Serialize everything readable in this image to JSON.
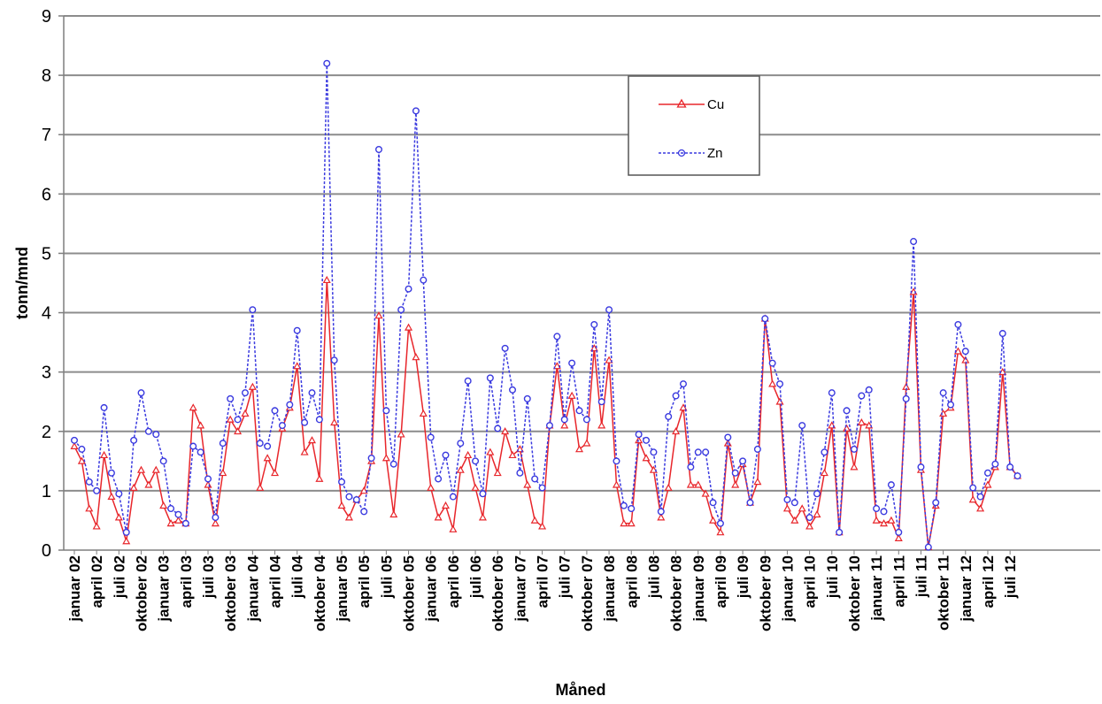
{
  "chart_data": {
    "type": "line",
    "xlabel": "Måned",
    "ylabel": "tonn/mnd",
    "ylim": [
      0,
      9
    ],
    "y_ticks": [
      "0",
      "1",
      "2",
      "3",
      "4",
      "5",
      "6",
      "7",
      "8",
      "9"
    ],
    "grid": "horizontal",
    "legend_position": "top-right",
    "x_tick_labels": [
      "januar 02",
      "april 02",
      "juli 02",
      "oktober 02",
      "januar 03",
      "april 03",
      "juli 03",
      "oktober 03",
      "januar 04",
      "april 04",
      "juli 04",
      "oktober 04",
      "januar 05",
      "april 05",
      "juli 05",
      "oktober 05",
      "januar 06",
      "april 06",
      "juli 06",
      "oktober 06",
      "januar 07",
      "april 07",
      "juli 07",
      "oktober 07",
      "januar 08",
      "april 08",
      "juli 08",
      "oktober 08",
      "januar 09",
      "april 09",
      "juli 09",
      "oktober 09",
      "januar 10",
      "april 10",
      "juli 10",
      "oktober 10",
      "januar 11",
      "april 11",
      "juli 11",
      "oktober 11",
      "januar 12",
      "april 12",
      "juli 12"
    ],
    "x_tick_month_index": [
      0,
      3,
      6,
      9,
      12,
      15,
      18,
      21,
      24,
      27,
      30,
      33,
      36,
      39,
      42,
      45,
      48,
      51,
      54,
      57,
      60,
      63,
      66,
      69,
      72,
      75,
      78,
      81,
      84,
      87,
      90,
      93,
      96,
      99,
      102,
      105,
      108,
      111,
      114,
      117,
      120,
      123,
      126
    ],
    "series": [
      {
        "name": "Cu",
        "color": "#e8262b",
        "marker": "triangle",
        "values": [
          1.75,
          1.5,
          0.7,
          0.4,
          1.6,
          0.9,
          0.55,
          0.15,
          1.05,
          1.35,
          1.1,
          1.35,
          0.75,
          0.45,
          0.5,
          0.45,
          2.4,
          2.1,
          1.1,
          0.45,
          1.3,
          2.2,
          2.0,
          2.3,
          2.75,
          1.05,
          1.55,
          1.3,
          2.05,
          2.4,
          3.1,
          1.65,
          1.85,
          1.2,
          4.55,
          2.15,
          0.75,
          0.55,
          0.85,
          1.0,
          1.5,
          3.95,
          1.55,
          0.6,
          1.95,
          3.75,
          3.25,
          2.3,
          1.05,
          0.55,
          0.75,
          0.35,
          1.35,
          1.6,
          1.05,
          0.55,
          1.65,
          1.3,
          2.0,
          1.6,
          1.7,
          1.1,
          0.5,
          0.4,
          2.1,
          3.1,
          2.1,
          2.6,
          1.7,
          1.8,
          3.4,
          2.1,
          3.2,
          1.1,
          0.45,
          0.45,
          1.85,
          1.55,
          1.35,
          0.55,
          1.05,
          2.0,
          2.4,
          1.1,
          1.1,
          0.95,
          0.5,
          0.3,
          1.8,
          1.1,
          1.45,
          0.8,
          1.15,
          3.9,
          2.8,
          2.5,
          0.7,
          0.5,
          0.7,
          0.4,
          0.6,
          1.3,
          2.1,
          0.3,
          2.05,
          1.4,
          2.15,
          2.1,
          0.5,
          0.45,
          0.5,
          0.2,
          2.75,
          4.35,
          1.35,
          0.05,
          0.75,
          2.3,
          2.4,
          3.35,
          3.2,
          0.85,
          0.7,
          1.1,
          1.4,
          3.0,
          1.4,
          1.25
        ]
      },
      {
        "name": "Zn",
        "color": "#3a3adf",
        "marker": "circle",
        "values": [
          1.85,
          1.7,
          1.15,
          1.0,
          2.4,
          1.3,
          0.95,
          0.3,
          1.85,
          2.65,
          2.0,
          1.95,
          1.5,
          0.7,
          0.6,
          0.45,
          1.75,
          1.65,
          1.2,
          0.55,
          1.8,
          2.55,
          2.2,
          2.65,
          4.05,
          1.8,
          1.75,
          2.35,
          2.1,
          2.45,
          3.7,
          2.15,
          2.65,
          2.2,
          8.2,
          3.2,
          1.15,
          0.9,
          0.85,
          0.65,
          1.55,
          6.75,
          2.35,
          1.45,
          4.05,
          4.4,
          7.4,
          4.55,
          1.9,
          1.2,
          1.6,
          0.9,
          1.8,
          2.85,
          1.5,
          0.95,
          2.9,
          2.05,
          3.4,
          2.7,
          1.3,
          2.55,
          1.2,
          1.05,
          2.1,
          3.6,
          2.2,
          3.15,
          2.35,
          2.2,
          3.8,
          2.5,
          4.05,
          1.5,
          0.75,
          0.7,
          1.95,
          1.85,
          1.65,
          0.65,
          2.25,
          2.6,
          2.8,
          1.4,
          1.65,
          1.65,
          0.8,
          0.45,
          1.9,
          1.3,
          1.5,
          0.8,
          1.7,
          3.9,
          3.15,
          2.8,
          0.85,
          0.8,
          2.1,
          0.55,
          0.95,
          1.65,
          2.65,
          0.3,
          2.35,
          1.7,
          2.6,
          2.7,
          0.7,
          0.65,
          1.1,
          0.3,
          2.55,
          5.2,
          1.4,
          0.05,
          0.8,
          2.65,
          2.45,
          3.8,
          3.35,
          1.05,
          0.9,
          1.3,
          1.45,
          3.65,
          1.4,
          1.25
        ]
      }
    ]
  }
}
